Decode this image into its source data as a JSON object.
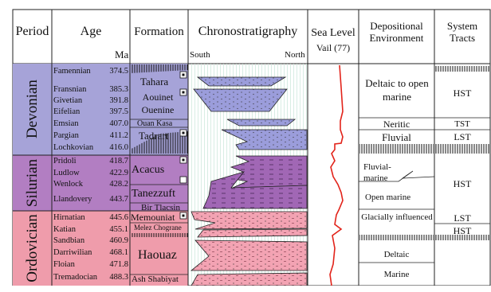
{
  "headers": {
    "period": "Period",
    "age": "Age",
    "age_unit": "Ma",
    "formation": "Formation",
    "chrono": "Chronostratigraphy",
    "chrono_left": "South",
    "chrono_right": "North",
    "sea_level": "Sea Level",
    "sea_level_sub": "Vail (77)",
    "environment": "Depositional Environment",
    "tracts": "System Tracts"
  },
  "periods": [
    {
      "name": "Devonian",
      "color": "#a6a3d8"
    },
    {
      "name": "Silurian",
      "color": "#b27ec2"
    },
    {
      "name": "Ordovician",
      "color": "#ef9cab"
    }
  ],
  "ages": [
    {
      "stage": "Famennian",
      "ma": "374.5"
    },
    {
      "stage": "Fransnian",
      "ma": "385.3"
    },
    {
      "stage": "Givetian",
      "ma": "391.8"
    },
    {
      "stage": "Eifelian",
      "ma": "397.5"
    },
    {
      "stage": "Emsian",
      "ma": "407.0"
    },
    {
      "stage": "Pargian",
      "ma": "411.2"
    },
    {
      "stage": "Lochkovian",
      "ma": "416.0"
    },
    {
      "stage": "Pridoli",
      "ma": "418.7"
    },
    {
      "stage": "Ludlow",
      "ma": "422.9"
    },
    {
      "stage": "Wenlock",
      "ma": "428.2"
    },
    {
      "stage": "Llandovery",
      "ma": "443.7"
    },
    {
      "stage": "Hirnatian",
      "ma": "445.6"
    },
    {
      "stage": "Katian",
      "ma": "455.1"
    },
    {
      "stage": "Sandbian",
      "ma": "460.9"
    },
    {
      "stage": "Darriwilian",
      "ma": "468.1"
    },
    {
      "stage": "Floian",
      "ma": "471.8"
    },
    {
      "stage": "Tremadocian",
      "ma": "488.3"
    }
  ],
  "formations": [
    "Tahara",
    "Aouinet Ouenine",
    "Ouan Kasa",
    "Tadrart",
    "Acacus",
    "Tanezzuft",
    "Bir Tlacsin",
    "Memouniat",
    "Melez Chograne",
    "Haouaz",
    "Ash Shabiyat"
  ],
  "environments": [
    "Deltaic to open marine",
    "Neritic",
    "Fluvial",
    "Fluvial-marine",
    "Open marine",
    "Glacially influenced",
    "Deltaic",
    "Marine"
  ],
  "tracts": [
    "HST",
    "TST",
    "LST",
    "HST",
    "LST",
    "HST"
  ],
  "colors": {
    "devonian_fill": "#9fa0dc",
    "silurian_fill": "#a46cb8",
    "ordovician_fill": "#f2a2b2",
    "grid_line": "#cfe8de",
    "sea_level_curve": "#e2231a"
  }
}
